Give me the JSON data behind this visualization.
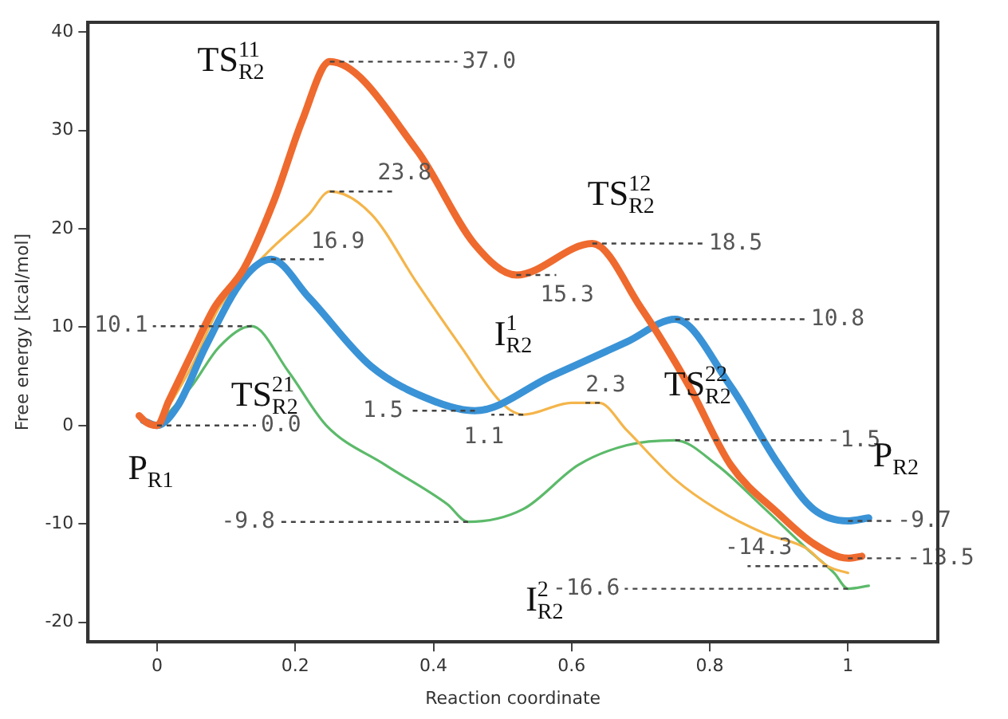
{
  "chart_data": {
    "type": "line",
    "xlabel": "Reaction coordinate",
    "ylabel": "Free energy [kcal/mol]",
    "xlim": [
      -0.1,
      1.13
    ],
    "ylim": [
      -22,
      41
    ],
    "xticks": [
      0,
      0.2,
      0.4,
      0.6,
      0.8,
      1
    ],
    "yticks": [
      -20,
      -10,
      0,
      10,
      20,
      30,
      40
    ],
    "grid": false,
    "legend": false,
    "marker": "none",
    "series": [
      {
        "color": "#ef6a2e",
        "x": [
          -0.026,
          -0.015,
          0,
          0.017,
          0.05,
          0.083,
          0.126,
          0.17,
          0.21,
          0.25,
          0.376,
          0.46,
          0.52,
          0.63,
          0.7,
          0.77,
          0.83,
          0.9,
          0.95,
          1.0,
          1.02
        ],
        "values": [
          1,
          0.3,
          0,
          2.5,
          7.3,
          12,
          16,
          23,
          31,
          37.0,
          28,
          18.4,
          15.3,
          18.5,
          12,
          4,
          -4,
          -9,
          -12,
          -13.5,
          -13.3
        ]
      },
      {
        "color": "#3a93d6",
        "x": [
          -0.02,
          0,
          0.03,
          0.07,
          0.126,
          0.165,
          0.22,
          0.31,
          0.4,
          0.46,
          0.57,
          0.68,
          0.75,
          0.83,
          0.9,
          0.95,
          1.0,
          1.03
        ],
        "values": [
          0.5,
          0,
          2,
          8,
          15,
          16.9,
          13,
          6,
          2.5,
          1.5,
          5,
          8.5,
          10.8,
          4,
          -4,
          -8.5,
          -9.7,
          -9.4
        ]
      },
      {
        "color": "#f4b54a",
        "x": [
          0,
          0.05,
          0.09,
          0.16,
          0.22,
          0.25,
          0.31,
          0.376,
          0.44,
          0.5,
          0.53,
          0.6,
          0.62,
          0.64,
          0.68,
          0.75,
          0.81,
          0.88,
          0.94,
          0.97,
          1.0
        ],
        "values": [
          0,
          6,
          12,
          17.6,
          21.5,
          23.8,
          21.5,
          14.5,
          8,
          2.2,
          1.1,
          2.3,
          2.3,
          2.3,
          -0.5,
          -5.5,
          -8.5,
          -11,
          -12.5,
          -14.3,
          -15
        ]
      },
      {
        "color": "#5cba6a",
        "x": [
          0,
          0.05,
          0.09,
          0.137,
          0.19,
          0.245,
          0.33,
          0.42,
          0.45,
          0.53,
          0.61,
          0.68,
          0.75,
          0.81,
          0.88,
          0.94,
          0.98,
          1.0,
          1.03
        ],
        "values": [
          0,
          4,
          8,
          10.1,
          5.5,
          0,
          -4,
          -8,
          -9.8,
          -8.5,
          -4,
          -2,
          -1.5,
          -4,
          -8.5,
          -12.5,
          -15,
          -16.6,
          -16.3
        ]
      }
    ],
    "annotations": [
      {
        "text": "37.0",
        "x": 0.25,
        "y": 37.0
      },
      {
        "text": "23.8",
        "x": 0.25,
        "y": 23.8
      },
      {
        "text": "16.9",
        "x": 0.165,
        "y": 16.9
      },
      {
        "text": "10.1",
        "x": 0.137,
        "y": 10.1
      },
      {
        "text": "0.0",
        "x": 0,
        "y": 0
      },
      {
        "text": "1.5",
        "x": 0.46,
        "y": 1.5
      },
      {
        "text": "1.1",
        "x": 0.53,
        "y": 1.1
      },
      {
        "text": "15.3",
        "x": 0.52,
        "y": 15.3
      },
      {
        "text": "18.5",
        "x": 0.63,
        "y": 18.5
      },
      {
        "text": "2.3",
        "x": 0.62,
        "y": 2.3
      },
      {
        "text": "10.8",
        "x": 0.75,
        "y": 10.8
      },
      {
        "text": "-1.5",
        "x": 0.75,
        "y": -1.5
      },
      {
        "text": "-9.8",
        "x": 0.45,
        "y": -9.8
      },
      {
        "text": "-9.7",
        "x": 1.0,
        "y": -9.7
      },
      {
        "text": "-13.5",
        "x": 1.0,
        "y": -13.5
      },
      {
        "text": "-14.3",
        "x": 0.97,
        "y": -14.3
      },
      {
        "text": "-16.6",
        "x": 1.0,
        "y": -16.6
      },
      {
        "text": "TS$^{11}$$_{R2}$",
        "x": 0.25,
        "y": 37.0
      },
      {
        "text": "TS$^{21}$$_{R2}$",
        "x": 0.137,
        "y": 10.1
      },
      {
        "text": "TS$^{12}$$_{R2}$",
        "x": 0.63,
        "y": 18.5
      },
      {
        "text": "I$^{1}$$_{R2}$",
        "x": 0.52,
        "y": 15.3
      },
      {
        "text": "TS$^{22}$$_{R2}$",
        "x": 0.75,
        "y": -1.5
      },
      {
        "text": "I$^{2}$$_{R2}$",
        "x": 0.45,
        "y": -9.8
      },
      {
        "text": "P$_{R1}$",
        "x": 0,
        "y": 0
      },
      {
        "text": "P$_{R2}$",
        "x": 1.0,
        "y": -9.7
      }
    ]
  }
}
